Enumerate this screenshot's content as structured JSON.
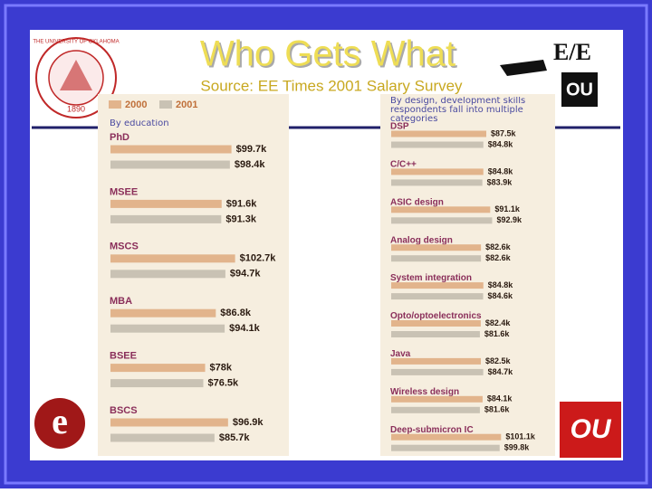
{
  "slide": {
    "title": "Who Gets What",
    "subtitle": "Source:  EE Times 2001 Salary Survey",
    "seal_text": "THE UNIVERSITY OF OKLAHOMA",
    "seal_year": "1890",
    "logo_text": "E/E",
    "logo_ou": "OU"
  },
  "chart_data": [
    {
      "type": "bar",
      "orientation": "horizontal",
      "title": "By education",
      "legend": true,
      "categories": [
        "PhD",
        "MSEE",
        "MSCS",
        "MBA",
        "BSEE",
        "BSCS"
      ],
      "series": [
        {
          "name": "2000",
          "color": "#e2b48c",
          "values": [
            99.7,
            91.6,
            102.7,
            86.8,
            78,
            96.9
          ],
          "value_labels": [
            "$99.7k",
            "$91.6k",
            "$102.7k",
            "$86.8k",
            "$78k",
            "$96.9k"
          ]
        },
        {
          "name": "2001",
          "color": "#c9c2b4",
          "values": [
            98.4,
            91.3,
            94.7,
            94.1,
            76.5,
            85.7
          ],
          "value_labels": [
            "$98.4k",
            "$91.3k",
            "$94.7k",
            "$94.1k",
            "$76.5k",
            "$85.7k"
          ]
        }
      ]
    },
    {
      "type": "bar",
      "orientation": "horizontal",
      "title": "By design, development skills respondents fall into multiple categories",
      "legend": false,
      "categories": [
        "DSP",
        "C/C++",
        "ASIC design",
        "Analog design",
        "System integration",
        "Opto/optoelectronics",
        "Java",
        "Wireless design",
        "Deep-submicron IC"
      ],
      "series": [
        {
          "name": "2000",
          "color": "#e2b48c",
          "values": [
            87.5,
            84.8,
            91.1,
            82.6,
            84.8,
            82.4,
            82.5,
            84.1,
            101.1
          ],
          "value_labels": [
            "$87.5k",
            "$84.8k",
            "$91.1k",
            "$82.6k",
            "$84.8k",
            "$82.4k",
            "$82.5k",
            "$84.1k",
            "$101.1k"
          ]
        },
        {
          "name": "2001",
          "color": "#c9c2b4",
          "values": [
            84.8,
            83.9,
            92.9,
            82.6,
            84.6,
            81.6,
            84.7,
            81.6,
            99.8
          ],
          "value_labels": [
            "$84.8k",
            "$83.9k",
            "$92.9k",
            "$82.6k",
            "$84.6k",
            "$81.6k",
            "$84.7k",
            "$81.6k",
            "$99.8k"
          ]
        }
      ]
    }
  ]
}
